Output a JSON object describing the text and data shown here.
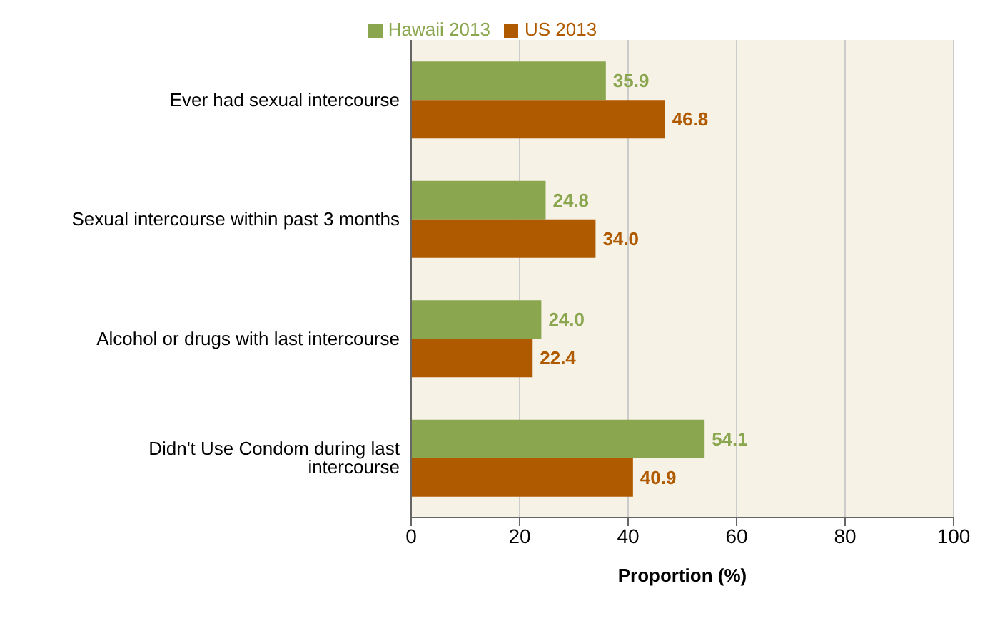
{
  "chart_data": {
    "type": "bar",
    "orientation": "horizontal",
    "xlabel": "Proportion (%)",
    "categories": [
      "Ever had sexual intercourse",
      "Sexual intercourse within past 3 months",
      "Alcohol or drugs with last intercourse",
      "Didn't Use Condom during last intercourse"
    ],
    "series": [
      {
        "name": "Hawaii 2013",
        "color": "#8aa64f",
        "values": [
          35.9,
          24.8,
          24.0,
          54.1
        ],
        "value_labels": [
          "35.9",
          "24.8",
          "24.0",
          "54.1"
        ]
      },
      {
        "name": "US 2013",
        "color": "#b05a00",
        "values": [
          46.8,
          34.0,
          22.4,
          40.9
        ],
        "value_labels": [
          "46.8",
          "34.0",
          "22.4",
          "40.9"
        ]
      }
    ],
    "xlim": [
      0,
      100
    ],
    "xticks": [
      0,
      20,
      40,
      60,
      80,
      100
    ],
    "grid": "x",
    "legend": "top"
  }
}
